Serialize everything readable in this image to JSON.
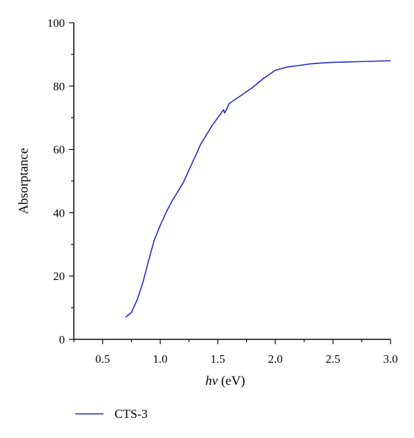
{
  "chart_data": {
    "type": "line",
    "title": "",
    "xlabel_italic": "hν",
    "xlabel_unit": " (eV)",
    "ylabel": "Absorptance",
    "xlim": [
      0.25,
      3.0
    ],
    "ylim": [
      0,
      100
    ],
    "x_ticks": [
      0.5,
      1.0,
      1.5,
      2.0,
      2.5,
      3.0
    ],
    "x_tick_labels": [
      "0.5",
      "1.0",
      "1.5",
      "2.0",
      "2.5",
      "3.0"
    ],
    "y_ticks": [
      0,
      20,
      40,
      60,
      80,
      100
    ],
    "y_tick_labels": [
      "0",
      "20",
      "40",
      "60",
      "80",
      "100"
    ],
    "grid": false,
    "legend_position": "bottom-left",
    "series": [
      {
        "name": "CTS-3",
        "color": "#1f24c8",
        "x": [
          0.7,
          0.75,
          0.8,
          0.85,
          0.9,
          0.95,
          1.0,
          1.05,
          1.1,
          1.15,
          1.2,
          1.25,
          1.3,
          1.35,
          1.4,
          1.45,
          1.5,
          1.55,
          1.56,
          1.6,
          1.7,
          1.8,
          1.9,
          2.0,
          2.1,
          2.2,
          2.3,
          2.4,
          2.5,
          2.6,
          2.7,
          2.8,
          2.9,
          3.0
        ],
        "y": [
          7.0,
          8.5,
          12.5,
          18.0,
          25.0,
          31.5,
          36.0,
          40.0,
          43.5,
          46.5,
          49.5,
          53.5,
          57.5,
          61.5,
          64.5,
          67.5,
          70.0,
          72.5,
          71.5,
          74.5,
          77.0,
          79.5,
          82.5,
          85.0,
          86.0,
          86.5,
          87.0,
          87.3,
          87.5,
          87.6,
          87.7,
          87.8,
          87.9,
          88.0
        ]
      }
    ]
  }
}
